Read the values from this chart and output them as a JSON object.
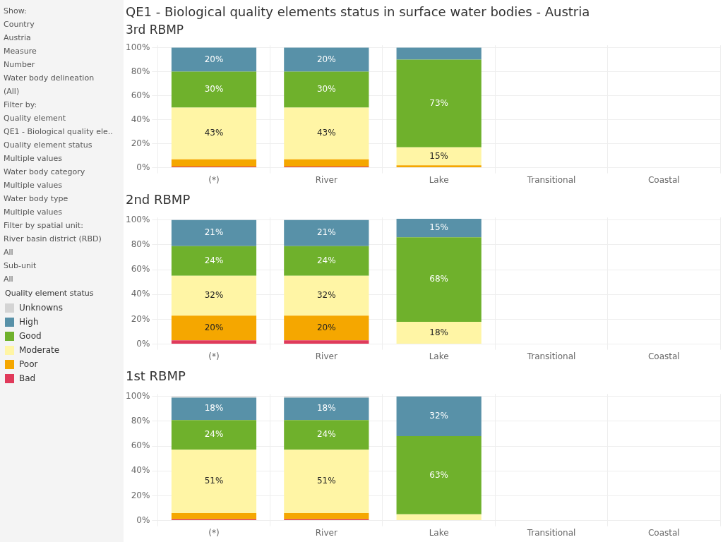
{
  "chart_data": [
    {
      "type": "bar",
      "title": "QE1 - Biological quality elements status in surface water bodies - Austria",
      "subtitle": "3rd RBMP",
      "stacked": true,
      "grid": true,
      "legend": "left",
      "legend_title": "Quality element status",
      "annotations": [
        "Show:",
        "Country",
        "Austria",
        "Measure",
        "Number",
        "Water body delineation",
        "(All)",
        "Filter by:",
        "Quality element",
        "QE1 - Biological quality ele..",
        "Quality element status",
        "Multiple values",
        "Water body category",
        "Multiple values",
        "Water body type",
        "Multiple values",
        "Filter by spatial unit:",
        "River basin district (RBD)",
        "All",
        "Sub-unit",
        "All"
      ],
      "categories": [
        "(*)",
        "River",
        "Lake",
        "Transitional",
        "Coastal"
      ],
      "ylim": [
        0,
        102
      ],
      "yticks": [
        {
          "value": 0,
          "label": "0%"
        },
        {
          "value": 20,
          "label": "20%"
        },
        {
          "value": 40,
          "label": "40%"
        },
        {
          "value": 60,
          "label": "60%"
        },
        {
          "value": 80,
          "label": "80%"
        },
        {
          "value": 100,
          "label": "100%"
        }
      ],
      "series": [
        {
          "name": "Bad",
          "color": "#e03a5a",
          "values": [
            1,
            1,
            0,
            null,
            null
          ],
          "value_labels": [
            null,
            null,
            null,
            null,
            null
          ]
        },
        {
          "name": "Poor",
          "color": "#f5a700",
          "values": [
            6,
            6,
            2,
            null,
            null
          ],
          "value_labels": [
            null,
            null,
            null,
            null,
            null
          ]
        },
        {
          "name": "Moderate",
          "color": "#fff5a5",
          "values": [
            43,
            43,
            15,
            null,
            null
          ],
          "value_labels": [
            "43%",
            "43%",
            "15%",
            null,
            null
          ]
        },
        {
          "name": "Good",
          "color": "#6fb12c",
          "values": [
            30,
            30,
            73,
            null,
            null
          ],
          "value_labels": [
            "30%",
            "30%",
            "73%",
            null,
            null
          ]
        },
        {
          "name": "High",
          "color": "#5891a8",
          "values": [
            20,
            20,
            10,
            null,
            null
          ],
          "value_labels": [
            "20%",
            "20%",
            null,
            null,
            null
          ]
        },
        {
          "name": "Unknowns",
          "color": "#d4d4d4",
          "values": [
            0,
            0,
            0,
            null,
            null
          ],
          "value_labels": [
            null,
            null,
            null,
            null,
            null
          ]
        }
      ]
    },
    {
      "type": "bar",
      "title": "2nd RBMP",
      "stacked": true,
      "grid": true,
      "categories": [
        "(*)",
        "River",
        "Lake",
        "Transitional",
        "Coastal"
      ],
      "ylim": [
        0,
        102
      ],
      "yticks": [
        {
          "value": 0,
          "label": "0%"
        },
        {
          "value": 20,
          "label": "20%"
        },
        {
          "value": 40,
          "label": "40%"
        },
        {
          "value": 60,
          "label": "60%"
        },
        {
          "value": 80,
          "label": "80%"
        },
        {
          "value": 100,
          "label": "100%"
        }
      ],
      "series": [
        {
          "color": "#e03a5a",
          "values": [
            3,
            3,
            0,
            null,
            null
          ],
          "value_labels": [
            null,
            null,
            null,
            null,
            null
          ]
        },
        {
          "color": "#f5a700",
          "values": [
            20,
            20,
            0,
            null,
            null
          ],
          "value_labels": [
            "20%",
            "20%",
            null,
            null,
            null
          ]
        },
        {
          "color": "#fff5a5",
          "values": [
            32,
            32,
            18,
            null,
            null
          ],
          "value_labels": [
            "32%",
            "32%",
            "18%",
            null,
            null
          ]
        },
        {
          "color": "#6fb12c",
          "values": [
            24,
            24,
            68,
            null,
            null
          ],
          "value_labels": [
            "24%",
            "24%",
            "68%",
            null,
            null
          ]
        },
        {
          "color": "#5891a8",
          "values": [
            21,
            21,
            15,
            null,
            null
          ],
          "value_labels": [
            "21%",
            "21%",
            "15%",
            null,
            null
          ]
        }
      ]
    },
    {
      "type": "bar",
      "title": "1st RBMP",
      "stacked": true,
      "grid": true,
      "categories": [
        "(*)",
        "River",
        "Lake",
        "Transitional",
        "Coastal"
      ],
      "ylim": [
        0,
        102
      ],
      "yticks": [
        {
          "value": 0,
          "label": "0%"
        },
        {
          "value": 20,
          "label": "20%"
        },
        {
          "value": 40,
          "label": "40%"
        },
        {
          "value": 60,
          "label": "60%"
        },
        {
          "value": 80,
          "label": "80%"
        },
        {
          "value": 100,
          "label": "100%"
        }
      ],
      "series": [
        {
          "color": "#e03a5a",
          "values": [
            1,
            1,
            0,
            null,
            null
          ],
          "value_labels": [
            null,
            null,
            null,
            null,
            null
          ]
        },
        {
          "color": "#f5a700",
          "values": [
            5,
            5,
            0,
            null,
            null
          ],
          "value_labels": [
            null,
            null,
            null,
            null,
            null
          ]
        },
        {
          "color": "#fff5a5",
          "values": [
            51,
            51,
            5,
            null,
            null
          ],
          "value_labels": [
            "51%",
            "51%",
            null,
            null,
            null
          ]
        },
        {
          "color": "#6fb12c",
          "values": [
            24,
            24,
            63,
            null,
            null
          ],
          "value_labels": [
            "24%",
            "24%",
            "63%",
            null,
            null
          ]
        },
        {
          "color": "#5891a8",
          "values": [
            18,
            18,
            32,
            null,
            null
          ],
          "value_labels": [
            "18%",
            "18%",
            "32%",
            null,
            null
          ]
        },
        {
          "color": "#d4d4d4",
          "values": [
            1,
            1,
            0,
            null,
            null
          ],
          "value_labels": [
            null,
            null,
            null,
            null,
            null
          ]
        }
      ]
    }
  ]
}
